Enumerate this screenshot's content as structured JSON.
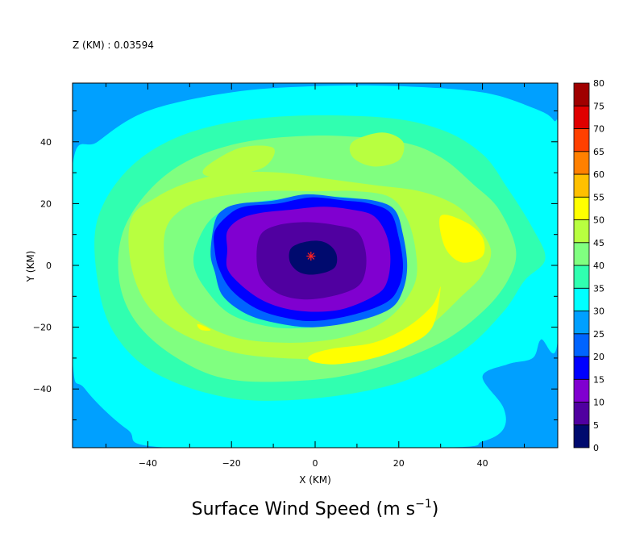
{
  "chart_data": {
    "type": "heatmap",
    "header": "Z (KM) : 0.03594",
    "title": "Surface Wind Speed (m s",
    "title_exponent": "−1",
    "title_close": ")",
    "xlabel": "X (KM)",
    "ylabel": "Y (KM)",
    "xlim": [
      -58,
      58
    ],
    "ylim": [
      -59,
      59
    ],
    "x_ticks": [
      -40,
      -20,
      0,
      20,
      40
    ],
    "x_tick_labels": [
      "−40",
      "−20",
      "0",
      "20",
      "40"
    ],
    "y_ticks": [
      40,
      20,
      0,
      -20,
      -40
    ],
    "y_tick_labels": [
      "40",
      "20",
      "0",
      "−20",
      "−40"
    ],
    "colorbar": {
      "levels": [
        0,
        5,
        10,
        15,
        20,
        25,
        30,
        35,
        40,
        45,
        50,
        55,
        60,
        65,
        70,
        75,
        80
      ],
      "labels": [
        "0",
        "5",
        "10",
        "15",
        "20",
        "25",
        "30",
        "35",
        "40",
        "45",
        "50",
        "55",
        "60",
        "65",
        "70",
        "75",
        "80"
      ],
      "colors": [
        "#000a6e",
        "#5000a0",
        "#8000d0",
        "#0000ff",
        "#0064ff",
        "#00a0ff",
        "#00ffff",
        "#30ffb0",
        "#80ff80",
        "#b8ff40",
        "#ffff00",
        "#ffc000",
        "#ff8000",
        "#ff4000",
        "#e00000",
        "#a00000"
      ]
    },
    "center_marker": {
      "x": -1,
      "y": 3,
      "color": "#ff2020"
    },
    "contours": [
      {
        "level": 25,
        "color": "#00a0ff",
        "points": [
          [
            -58,
            -59
          ],
          [
            58,
            -59
          ],
          [
            58,
            59
          ],
          [
            -58,
            59
          ]
        ]
      },
      {
        "level": 30,
        "color": "#00ffff",
        "points": [
          [
            -58,
            32
          ],
          [
            -52,
            40
          ],
          [
            -40,
            50
          ],
          [
            -20,
            56
          ],
          [
            0,
            58
          ],
          [
            20,
            58
          ],
          [
            40,
            56
          ],
          [
            52,
            51
          ],
          [
            57,
            47
          ],
          [
            58,
            40
          ],
          [
            58,
            -24
          ],
          [
            54,
            -24
          ],
          [
            52,
            -30
          ],
          [
            46,
            -32
          ],
          [
            40,
            -36
          ],
          [
            45,
            -46
          ],
          [
            45,
            -53
          ],
          [
            40,
            -57
          ],
          [
            30,
            -59
          ],
          [
            -35,
            -59
          ],
          [
            -45,
            -53
          ],
          [
            -55,
            -40
          ],
          [
            -58,
            -30
          ]
        ]
      },
      {
        "level": 35,
        "color": "#30ffb0",
        "points": [
          [
            -52,
            15
          ],
          [
            -44,
            32
          ],
          [
            -30,
            43
          ],
          [
            -10,
            48
          ],
          [
            15,
            48
          ],
          [
            30,
            44
          ],
          [
            40,
            36
          ],
          [
            46,
            25
          ],
          [
            52,
            12
          ],
          [
            55,
            2
          ],
          [
            50,
            -5
          ],
          [
            45,
            -15
          ],
          [
            35,
            -28
          ],
          [
            20,
            -38
          ],
          [
            0,
            -43
          ],
          [
            -20,
            -43
          ],
          [
            -38,
            -35
          ],
          [
            -48,
            -22
          ],
          [
            -52,
            -5
          ]
        ]
      },
      {
        "level": 40,
        "color": "#80ff80",
        "points": [
          [
            -45,
            14
          ],
          [
            -35,
            30
          ],
          [
            -20,
            39
          ],
          [
            0,
            42
          ],
          [
            20,
            40
          ],
          [
            30,
            35
          ],
          [
            38,
            26
          ],
          [
            44,
            18
          ],
          [
            48,
            5
          ],
          [
            46,
            -5
          ],
          [
            40,
            -15
          ],
          [
            30,
            -25
          ],
          [
            15,
            -33
          ],
          [
            0,
            -37
          ],
          [
            -20,
            -37
          ],
          [
            -33,
            -30
          ],
          [
            -43,
            -18
          ],
          [
            -47,
            -3
          ]
        ]
      },
      {
        "level": 45,
        "color": "#b8ff40",
        "points": [
          [
            -44,
            15
          ],
          [
            -38,
            22
          ],
          [
            -30,
            27
          ],
          [
            -20,
            30
          ],
          [
            -8,
            30
          ],
          [
            3,
            28
          ],
          [
            14,
            26
          ],
          [
            25,
            24
          ],
          [
            33,
            20
          ],
          [
            38,
            14
          ],
          [
            42,
            5
          ],
          [
            40,
            -3
          ],
          [
            35,
            -10
          ],
          [
            27,
            -20
          ],
          [
            18,
            -27
          ],
          [
            5,
            -30
          ],
          [
            -8,
            -30
          ],
          [
            -20,
            -28
          ],
          [
            -32,
            -22
          ],
          [
            -40,
            -13
          ],
          [
            -44,
            0
          ]
        ]
      },
      {
        "level": 45,
        "color": "#b8ff40",
        "points": [
          [
            -26,
            32
          ],
          [
            -18,
            38
          ],
          [
            -10,
            38
          ],
          [
            -12,
            32
          ],
          [
            -20,
            29
          ],
          [
            -26,
            29
          ]
        ]
      },
      {
        "level": 45,
        "color": "#b8ff40",
        "points": [
          [
            9,
            40
          ],
          [
            16,
            43
          ],
          [
            21,
            40
          ],
          [
            20,
            34
          ],
          [
            14,
            32
          ],
          [
            9,
            35
          ]
        ]
      },
      {
        "level": 40,
        "color": "#80ff80",
        "points": [
          [
            -36,
            10
          ],
          [
            -32,
            18
          ],
          [
            -24,
            22
          ],
          [
            -12,
            24
          ],
          [
            0,
            24
          ],
          [
            10,
            24
          ],
          [
            18,
            22
          ],
          [
            22,
            15
          ],
          [
            24,
            5
          ],
          [
            24,
            -5
          ],
          [
            20,
            -14
          ],
          [
            14,
            -20
          ],
          [
            4,
            -24
          ],
          [
            -8,
            -25
          ],
          [
            -20,
            -23
          ],
          [
            -30,
            -16
          ],
          [
            -35,
            -6
          ]
        ]
      },
      {
        "level": 35,
        "color": "#30ffb0",
        "points": [
          [
            -28,
            8
          ],
          [
            -24,
            16
          ],
          [
            -16,
            20
          ],
          [
            -4,
            22
          ],
          [
            8,
            22
          ],
          [
            16,
            19
          ],
          [
            20,
            12
          ],
          [
            21,
            2
          ],
          [
            20,
            -7
          ],
          [
            16,
            -14
          ],
          [
            10,
            -18
          ],
          [
            0,
            -20
          ],
          [
            -10,
            -20
          ],
          [
            -20,
            -16
          ],
          [
            -26,
            -8
          ],
          [
            -29,
            0
          ]
        ]
      },
      {
        "level": 50,
        "color": "#ffff00",
        "points": [
          [
            30,
            16
          ],
          [
            36,
            14
          ],
          [
            40,
            9
          ],
          [
            40,
            3
          ],
          [
            35,
            1
          ],
          [
            31,
            6
          ]
        ]
      },
      {
        "level": 50,
        "color": "#ffff00",
        "points": [
          [
            30,
            -7
          ],
          [
            28,
            -13
          ],
          [
            22,
            -20
          ],
          [
            14,
            -25
          ],
          [
            4,
            -27
          ],
          [
            -1,
            -29
          ],
          [
            -1,
            -31
          ],
          [
            5,
            -32
          ],
          [
            14,
            -30
          ],
          [
            22,
            -26
          ],
          [
            28,
            -20
          ]
        ]
      },
      {
        "level": 50,
        "color": "#ffff00",
        "points": [
          [
            -28,
            -19
          ],
          [
            -26,
            -20
          ],
          [
            -25,
            -21
          ],
          [
            -27,
            -21
          ],
          [
            -28,
            -20
          ]
        ]
      },
      {
        "level": 20,
        "color": "#0064ff",
        "points": [
          [
            -24,
            14
          ],
          [
            -22,
            18
          ],
          [
            -18,
            20
          ],
          [
            -10,
            21
          ],
          [
            -2,
            23
          ],
          [
            6,
            22
          ],
          [
            14,
            21
          ],
          [
            19,
            18
          ],
          [
            21,
            10
          ],
          [
            22,
            0
          ],
          [
            21,
            -8
          ],
          [
            18,
            -14
          ],
          [
            10,
            -18
          ],
          [
            0,
            -20
          ],
          [
            -8,
            -19
          ],
          [
            -16,
            -16
          ],
          [
            -22,
            -10
          ],
          [
            -24,
            -2
          ],
          [
            -25,
            4
          ]
        ]
      },
      {
        "level": 15,
        "color": "#0000ff",
        "points": [
          [
            -24,
            11
          ],
          [
            -21,
            16
          ],
          [
            -17,
            19
          ],
          [
            -9,
            20
          ],
          [
            -1,
            22
          ],
          [
            7,
            21
          ],
          [
            13,
            20
          ],
          [
            18,
            17
          ],
          [
            20,
            9
          ],
          [
            21,
            0
          ],
          [
            20,
            -7
          ],
          [
            17,
            -12
          ],
          [
            9,
            -16
          ],
          [
            0,
            -18
          ],
          [
            -7,
            -17
          ],
          [
            -14,
            -14
          ],
          [
            -20,
            -8
          ],
          [
            -23,
            -1
          ],
          [
            -24,
            5
          ]
        ]
      },
      {
        "level": 10,
        "color": "#8000d0",
        "points": [
          [
            -21,
            11
          ],
          [
            -18,
            15
          ],
          [
            -13,
            17
          ],
          [
            -6,
            18
          ],
          [
            2,
            19
          ],
          [
            9,
            18
          ],
          [
            14,
            16
          ],
          [
            17,
            10
          ],
          [
            18,
            2
          ],
          [
            17,
            -6
          ],
          [
            14,
            -10
          ],
          [
            7,
            -14
          ],
          [
            0,
            -15
          ],
          [
            -7,
            -14
          ],
          [
            -13,
            -11
          ],
          [
            -18,
            -6
          ],
          [
            -21,
            -1
          ],
          [
            -21,
            5
          ]
        ]
      },
      {
        "level": 5,
        "color": "#5000a0",
        "points": [
          [
            -13,
            10
          ],
          [
            -9,
            13
          ],
          [
            -2,
            14
          ],
          [
            5,
            13
          ],
          [
            10,
            11
          ],
          [
            12,
            5
          ],
          [
            12,
            -2
          ],
          [
            10,
            -7
          ],
          [
            4,
            -10
          ],
          [
            -3,
            -11
          ],
          [
            -9,
            -9
          ],
          [
            -13,
            -4
          ],
          [
            -14,
            3
          ]
        ]
      },
      {
        "level": 0,
        "color": "#000a6e",
        "points": [
          [
            -6,
            5
          ],
          [
            -4,
            7
          ],
          [
            0,
            8
          ],
          [
            3,
            7
          ],
          [
            5,
            4
          ],
          [
            5,
            0
          ],
          [
            3,
            -2
          ],
          [
            -1,
            -3
          ],
          [
            -4,
            -2
          ],
          [
            -6,
            1
          ]
        ]
      }
    ]
  }
}
